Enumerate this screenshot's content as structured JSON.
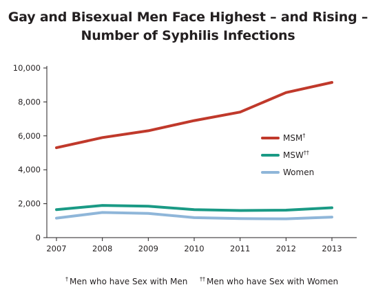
{
  "chart_data": {
    "type": "line",
    "title_line1": "Gay and Bisexual Men Face Highest – and Rising –",
    "title_line2": "Number of Syphilis Infections",
    "x": [
      "2007",
      "2008",
      "2009",
      "2010",
      "2011",
      "2012",
      "2013"
    ],
    "ylim": [
      0,
      10000
    ],
    "yticks": [
      0,
      2000,
      4000,
      6000,
      8000,
      10000
    ],
    "ytick_labels": [
      "0",
      "2,000",
      "4,000",
      "6,000",
      "8,000",
      "10,000"
    ],
    "grid": false,
    "legend_position": "right",
    "series": [
      {
        "name": "MSM",
        "marker": "†",
        "color": "#c0392b",
        "values": [
          5300,
          5900,
          6300,
          6900,
          7400,
          8550,
          9150
        ]
      },
      {
        "name": "MSW",
        "marker": "††",
        "color": "#1a9a85",
        "values": [
          1650,
          1900,
          1850,
          1650,
          1600,
          1620,
          1760
        ]
      },
      {
        "name": "Women",
        "marker": "",
        "color": "#8fb6d9",
        "values": [
          1150,
          1480,
          1430,
          1180,
          1120,
          1110,
          1210
        ]
      }
    ]
  },
  "footnotes": [
    {
      "marker": "†",
      "text": "Men who have Sex with Men"
    },
    {
      "marker": "††",
      "text": "Men who have Sex with Women"
    }
  ]
}
